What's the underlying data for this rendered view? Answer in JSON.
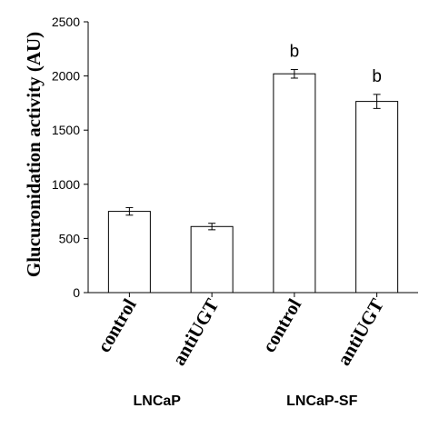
{
  "chart_data": {
    "type": "bar",
    "ylabel": "Glucuronidation activity (AU)",
    "ylim": [
      0,
      2500
    ],
    "yticks": [
      0,
      500,
      1000,
      1500,
      2000,
      2500
    ],
    "categories": [
      "control",
      "antiUGT",
      "control",
      "antiUGT"
    ],
    "values": [
      750,
      610,
      2020,
      1765
    ],
    "errors": [
      35,
      30,
      40,
      65
    ],
    "annotations": [
      "",
      "",
      "b",
      "b"
    ],
    "groups": [
      {
        "label": "LNCaP",
        "categories": [
          0,
          1
        ]
      },
      {
        "label": "LNCaP-SF",
        "categories": [
          2,
          3
        ]
      }
    ],
    "bar_fill": "#ffffff",
    "bar_stroke": "#000000",
    "grid": false,
    "legend": "none"
  }
}
